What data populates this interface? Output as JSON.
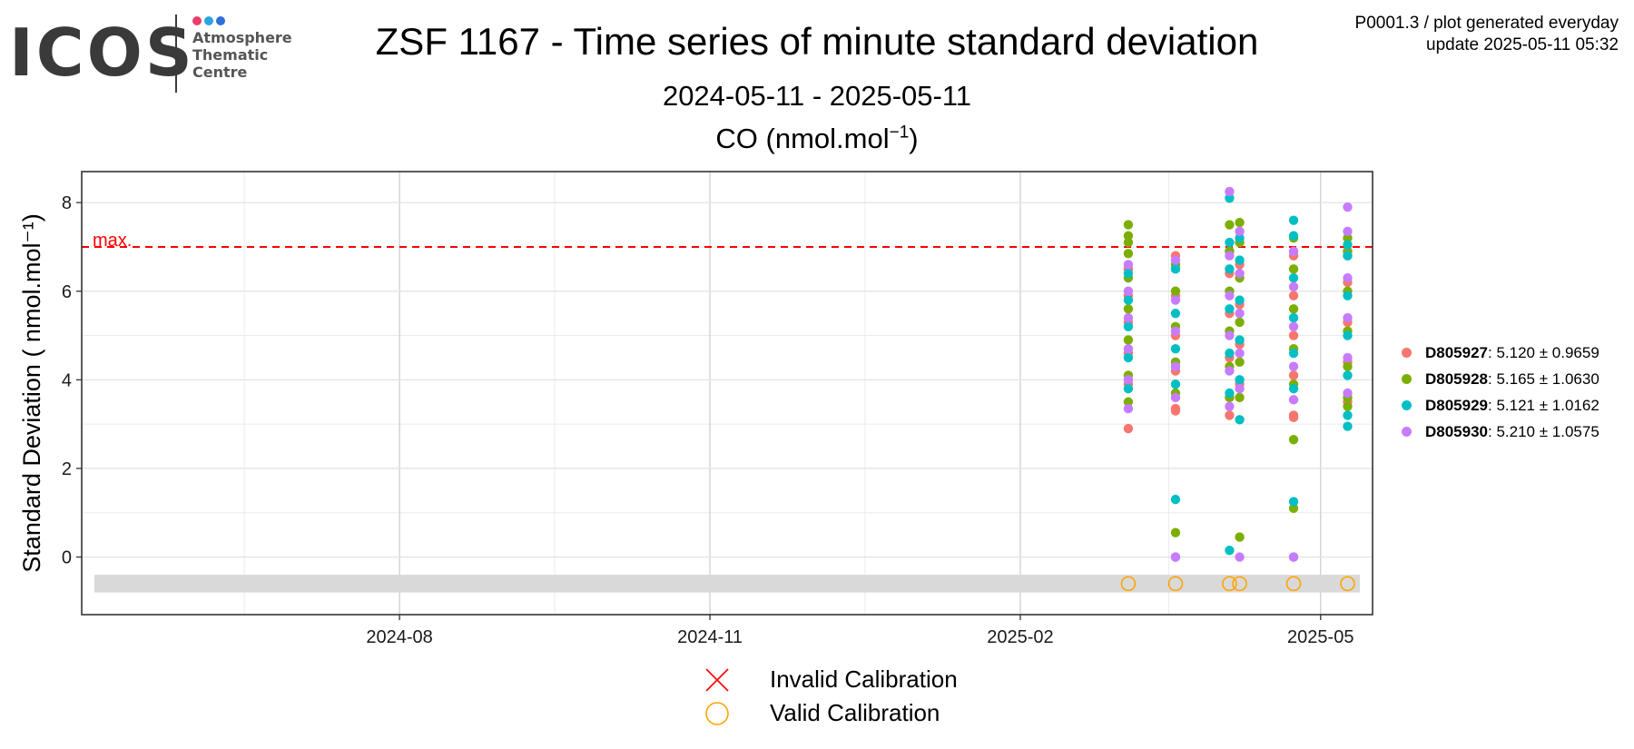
{
  "logo": {
    "wordmark": "ICOS",
    "sub": [
      "Atmosphere",
      "Thematic",
      "Centre"
    ],
    "dot_colors": [
      "#e83e6c",
      "#2aa6e0",
      "#2f6fd8"
    ]
  },
  "header": {
    "title": "ZSF 1167 - Time series of minute standard deviation",
    "date_range": "2024-05-11 - 2025-05-11",
    "species_prefix": "CO (nmol.mol",
    "species_exp": "−1",
    "species_suffix": ")"
  },
  "note": {
    "line1": "P0001.3 / plot generated everyday",
    "line2": "update  2025-05-11 05:32"
  },
  "legend_bottom": {
    "invalid": "Invalid Calibration",
    "valid": "Valid Calibration",
    "invalid_color": "#ff0000",
    "valid_color": "#ffa500"
  },
  "chart_data": {
    "type": "scatter",
    "title": "ZSF 1167 - Time series of minute standard deviation",
    "subtitle": "2024-05-11 - 2025-05-11",
    "xlabel": "",
    "ylabel": "Standard Deviation ( nmol.mol⁻¹)",
    "xlim": [
      "2024-05-11",
      "2025-05-11"
    ],
    "ylim": [
      -1.3,
      8.7
    ],
    "x_ticks": [
      "2024-08",
      "2024-11",
      "2025-02",
      "2025-05"
    ],
    "y_ticks": [
      0,
      2,
      4,
      6,
      8
    ],
    "grid": true,
    "legend_position": "right",
    "threshold": {
      "label": "max.",
      "value": 7,
      "color": "#ff0000",
      "style": "dashed"
    },
    "calibration_band": {
      "y_range": [
        -0.8,
        -0.4
      ],
      "color": "#d9d9d9"
    },
    "valid_calibrations": [
      "2025-03-05",
      "2025-03-19",
      "2025-04-04",
      "2025-04-07",
      "2025-04-23",
      "2025-05-09"
    ],
    "invalid_calibrations": [],
    "series": [
      {
        "name": "D805927",
        "stat": ": 5.120 ± 0.9659",
        "color": "#f8766d",
        "points": [
          [
            "2025-03-05",
            2.9
          ],
          [
            "2025-03-05",
            3.9
          ],
          [
            "2025-03-05",
            4.6
          ],
          [
            "2025-03-05",
            5.3
          ],
          [
            "2025-03-05",
            5.9
          ],
          [
            "2025-03-05",
            6.5
          ],
          [
            "2025-03-19",
            3.3
          ],
          [
            "2025-03-19",
            3.35
          ],
          [
            "2025-03-19",
            4.2
          ],
          [
            "2025-03-19",
            5.0
          ],
          [
            "2025-03-19",
            5.9
          ],
          [
            "2025-03-19",
            6.8
          ],
          [
            "2025-04-04",
            3.2
          ],
          [
            "2025-04-04",
            3.6
          ],
          [
            "2025-04-04",
            4.5
          ],
          [
            "2025-04-04",
            5.5
          ],
          [
            "2025-04-04",
            6.4
          ],
          [
            "2025-04-04",
            6.9
          ],
          [
            "2025-04-07",
            3.9
          ],
          [
            "2025-04-07",
            4.8
          ],
          [
            "2025-04-07",
            5.7
          ],
          [
            "2025-04-07",
            6.6
          ],
          [
            "2025-04-23",
            3.15
          ],
          [
            "2025-04-23",
            3.2
          ],
          [
            "2025-04-23",
            4.1
          ],
          [
            "2025-04-23",
            5.0
          ],
          [
            "2025-04-23",
            5.9
          ],
          [
            "2025-04-23",
            6.8
          ],
          [
            "2025-05-09",
            3.5
          ],
          [
            "2025-05-09",
            4.4
          ],
          [
            "2025-05-09",
            5.3
          ],
          [
            "2025-05-09",
            6.2
          ],
          [
            "2025-05-09",
            6.8
          ],
          [
            "2025-05-09",
            6.9
          ]
        ]
      },
      {
        "name": "D805928",
        "stat": ": 5.165 ± 1.0630",
        "color": "#7cae00",
        "points": [
          [
            "2025-03-05",
            3.5
          ],
          [
            "2025-03-05",
            4.1
          ],
          [
            "2025-03-05",
            4.9
          ],
          [
            "2025-03-05",
            5.6
          ],
          [
            "2025-03-05",
            6.3
          ],
          [
            "2025-03-05",
            6.85
          ],
          [
            "2025-03-05",
            7.1
          ],
          [
            "2025-03-05",
            7.25
          ],
          [
            "2025-03-05",
            7.5
          ],
          [
            "2025-03-19",
            0.55
          ],
          [
            "2025-03-19",
            3.7
          ],
          [
            "2025-03-19",
            4.4
          ],
          [
            "2025-03-19",
            5.2
          ],
          [
            "2025-03-19",
            6.0
          ],
          [
            "2025-03-19",
            6.6
          ],
          [
            "2025-04-04",
            3.6
          ],
          [
            "2025-04-04",
            4.3
          ],
          [
            "2025-04-04",
            5.1
          ],
          [
            "2025-04-04",
            6.0
          ],
          [
            "2025-04-04",
            6.9
          ],
          [
            "2025-04-04",
            7.5
          ],
          [
            "2025-04-07",
            0.45
          ],
          [
            "2025-04-07",
            3.6
          ],
          [
            "2025-04-07",
            4.4
          ],
          [
            "2025-04-07",
            5.3
          ],
          [
            "2025-04-07",
            6.3
          ],
          [
            "2025-04-07",
            7.1
          ],
          [
            "2025-04-07",
            7.55
          ],
          [
            "2025-04-23",
            1.1
          ],
          [
            "2025-04-23",
            2.65
          ],
          [
            "2025-04-23",
            3.9
          ],
          [
            "2025-04-23",
            4.7
          ],
          [
            "2025-04-23",
            5.6
          ],
          [
            "2025-04-23",
            6.5
          ],
          [
            "2025-04-23",
            7.2
          ],
          [
            "2025-05-09",
            3.4
          ],
          [
            "2025-05-09",
            3.6
          ],
          [
            "2025-05-09",
            4.3
          ],
          [
            "2025-05-09",
            5.1
          ],
          [
            "2025-05-09",
            6.0
          ],
          [
            "2025-05-09",
            6.9
          ],
          [
            "2025-05-09",
            7.2
          ]
        ]
      },
      {
        "name": "D805929",
        "stat": ": 5.121 ± 1.0162",
        "color": "#00bfc4",
        "points": [
          [
            "2025-03-05",
            3.8
          ],
          [
            "2025-03-05",
            4.5
          ],
          [
            "2025-03-05",
            5.2
          ],
          [
            "2025-03-05",
            5.8
          ],
          [
            "2025-03-05",
            6.4
          ],
          [
            "2025-03-19",
            0.0
          ],
          [
            "2025-03-19",
            1.3
          ],
          [
            "2025-03-19",
            3.9
          ],
          [
            "2025-03-19",
            4.7
          ],
          [
            "2025-03-19",
            5.5
          ],
          [
            "2025-03-19",
            6.5
          ],
          [
            "2025-04-04",
            0.15
          ],
          [
            "2025-04-04",
            3.7
          ],
          [
            "2025-04-04",
            4.6
          ],
          [
            "2025-04-04",
            5.6
          ],
          [
            "2025-04-04",
            6.5
          ],
          [
            "2025-04-04",
            7.1
          ],
          [
            "2025-04-04",
            8.1
          ],
          [
            "2025-04-07",
            3.1
          ],
          [
            "2025-04-07",
            4.0
          ],
          [
            "2025-04-07",
            4.9
          ],
          [
            "2025-04-07",
            5.8
          ],
          [
            "2025-04-07",
            6.7
          ],
          [
            "2025-04-07",
            7.2
          ],
          [
            "2025-04-23",
            0.0
          ],
          [
            "2025-04-23",
            1.25
          ],
          [
            "2025-04-23",
            3.8
          ],
          [
            "2025-04-23",
            4.6
          ],
          [
            "2025-04-23",
            5.4
          ],
          [
            "2025-04-23",
            6.3
          ],
          [
            "2025-04-23",
            7.25
          ],
          [
            "2025-04-23",
            7.6
          ],
          [
            "2025-05-09",
            2.95
          ],
          [
            "2025-05-09",
            3.2
          ],
          [
            "2025-05-09",
            4.1
          ],
          [
            "2025-05-09",
            5.0
          ],
          [
            "2025-05-09",
            5.9
          ],
          [
            "2025-05-09",
            6.8
          ],
          [
            "2025-05-09",
            7.05
          ]
        ]
      },
      {
        "name": "D805930",
        "stat": ": 5.210 ± 1.0575",
        "color": "#c77cff",
        "points": [
          [
            "2025-03-05",
            3.35
          ],
          [
            "2025-03-05",
            4.0
          ],
          [
            "2025-03-05",
            4.7
          ],
          [
            "2025-03-05",
            5.4
          ],
          [
            "2025-03-05",
            6.0
          ],
          [
            "2025-03-05",
            6.6
          ],
          [
            "2025-03-19",
            0.0
          ],
          [
            "2025-03-19",
            3.6
          ],
          [
            "2025-03-19",
            4.3
          ],
          [
            "2025-03-19",
            5.1
          ],
          [
            "2025-03-19",
            5.8
          ],
          [
            "2025-03-19",
            6.7
          ],
          [
            "2025-04-04",
            3.4
          ],
          [
            "2025-04-04",
            4.2
          ],
          [
            "2025-04-04",
            5.0
          ],
          [
            "2025-04-04",
            5.9
          ],
          [
            "2025-04-04",
            6.8
          ],
          [
            "2025-04-04",
            8.25
          ],
          [
            "2025-04-07",
            0.0
          ],
          [
            "2025-04-07",
            3.8
          ],
          [
            "2025-04-07",
            4.6
          ],
          [
            "2025-04-07",
            5.5
          ],
          [
            "2025-04-07",
            6.4
          ],
          [
            "2025-04-07",
            7.35
          ],
          [
            "2025-04-23",
            0.0
          ],
          [
            "2025-04-23",
            3.55
          ],
          [
            "2025-04-23",
            4.3
          ],
          [
            "2025-04-23",
            5.2
          ],
          [
            "2025-04-23",
            6.1
          ],
          [
            "2025-04-23",
            6.9
          ],
          [
            "2025-05-09",
            3.7
          ],
          [
            "2025-05-09",
            4.5
          ],
          [
            "2025-05-09",
            5.4
          ],
          [
            "2025-05-09",
            6.3
          ],
          [
            "2025-05-09",
            7.35
          ],
          [
            "2025-05-09",
            7.9
          ]
        ]
      }
    ]
  }
}
